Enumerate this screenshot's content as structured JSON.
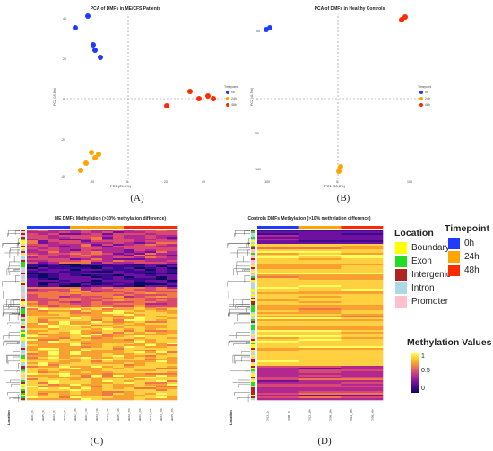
{
  "panelA": {
    "caption": "(A)",
    "title": "PCA of DMFs in ME/CFS Patients",
    "xlabel": "PC1 (29.6%)",
    "ylabel": "PC2 (19.8%)",
    "legend_title": "Timepoint",
    "legend": [
      "0h",
      "24h",
      "48h"
    ],
    "yticks": [
      "40",
      "20",
      "0",
      "-20",
      "-40"
    ],
    "xticks": [
      "-20",
      "0",
      "20",
      "40"
    ]
  },
  "panelB": {
    "caption": "(B)",
    "title": "PCA of DMFs in Healthy Controls",
    "xlabel": "PC1 (50.8%)",
    "ylabel": "PC2 (41.5%)",
    "legend_title": "Timepoint",
    "legend": [
      "0h",
      "24h",
      "48h"
    ],
    "yticks": [
      "50",
      "0",
      "-50",
      "-100"
    ],
    "xticks": [
      "-100",
      "0",
      "100"
    ]
  },
  "panelC": {
    "caption": "(C)",
    "title": "ME DMFs Methylation (>10% methylation difference)",
    "location_label": "Location",
    "samples": [
      "ME01_0h",
      "ME05_0h",
      "ME03_0h",
      "ME04_0h",
      "ME02_24h",
      "ME01_24h",
      "ME03_24h",
      "ME04_24h",
      "ME05_24h",
      "ME02_48h",
      "ME01_48h",
      "ME03_48h",
      "ME04_48h",
      "ME05_48h"
    ]
  },
  "panelD": {
    "caption": "(D)",
    "title": "Controls DMFs Methylation (>10% methylation difference)",
    "location_label": "Location",
    "samples": [
      "C012_0h",
      "C008_0h",
      "C012_24h",
      "C008_24h",
      "C012_48h",
      "C008_48h"
    ]
  },
  "legend": {
    "location_title": "Location",
    "locations": [
      {
        "label": "Boundary",
        "color": "#FFFF00"
      },
      {
        "label": "Exon",
        "color": "#22DD22"
      },
      {
        "label": "Intergenic",
        "color": "#B22222"
      },
      {
        "label": "Intron",
        "color": "#ADD8E6"
      },
      {
        "label": "Promoter",
        "color": "#FFC0CB"
      }
    ],
    "timepoint_title": "Timepoint",
    "timepoints": [
      {
        "label": "0h",
        "color": "#1E3CFF"
      },
      {
        "label": "24h",
        "color": "#FFA500"
      },
      {
        "label": "48h",
        "color": "#FF2A00"
      }
    ],
    "methylation_title": "Methylation Values",
    "scale_ticks": [
      "1",
      "0.5",
      "0"
    ]
  },
  "colors": {
    "t0": "#1E3CFF",
    "t24": "#FFA500",
    "t48": "#FF2A00"
  }
}
